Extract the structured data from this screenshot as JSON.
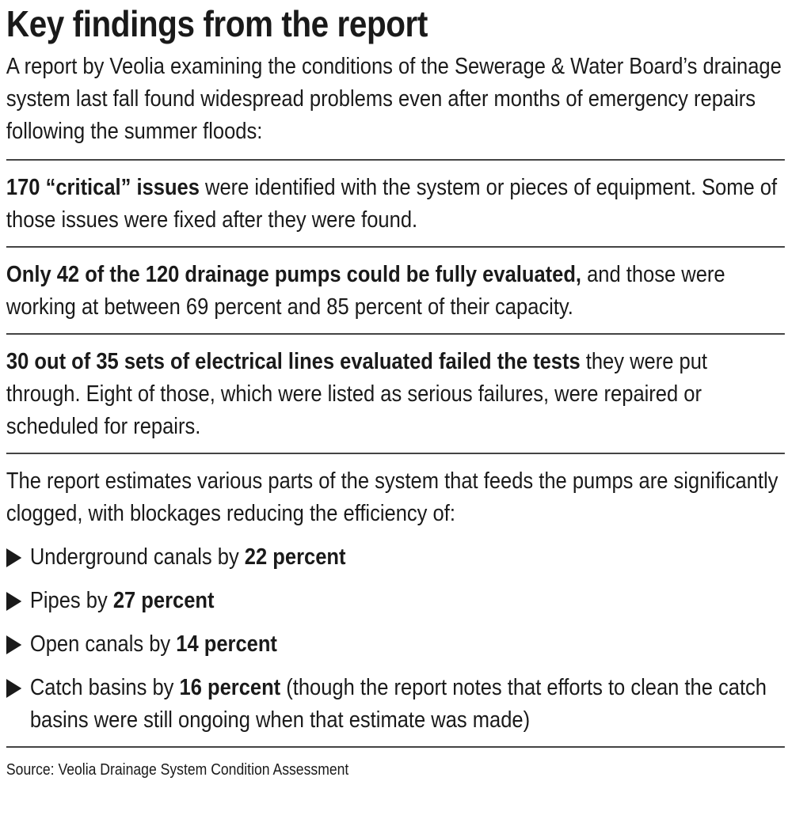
{
  "title": "Key findings from the report",
  "intro": "A report by Veolia examining the conditions of the Sewerage & Water Board’s drainage system last fall found widespread problems even after months of emergency repairs following the summer floods:",
  "findings": [
    {
      "bold": "170 “critical” issues",
      "text": " were identified with the system or pieces of equipment. Some of those issues were fixed after they were found."
    },
    {
      "bold": "Only 42 of the 120 drainage pumps could be fully evaluated,",
      "text": " and those were working at between 69 percent and 85 percent of their capacity."
    },
    {
      "bold": "30 out of 35 sets of electrical lines evaluated failed the tests",
      "text": " they were put through. Eight of those, which were listed as serious failures, were repaired or scheduled for repairs."
    }
  ],
  "blockages": {
    "intro": "The report estimates various parts of the system that feeds the pumps are significantly clogged, with blockages reducing the efficiency of:",
    "items": [
      {
        "text": "Underground canals by ",
        "bold": "22 percent"
      },
      {
        "text": "Pipes by ",
        "bold": "27 percent"
      },
      {
        "text": "Open canals by ",
        "bold": "14 percent"
      },
      {
        "text": "Catch basins by ",
        "bold": "16 percent",
        "note": " (though the report notes that efforts to clean the catch basins were still ongoing when that estimate was made)"
      }
    ]
  },
  "source": "Source: Veolia Drainage System Condition Assessment"
}
